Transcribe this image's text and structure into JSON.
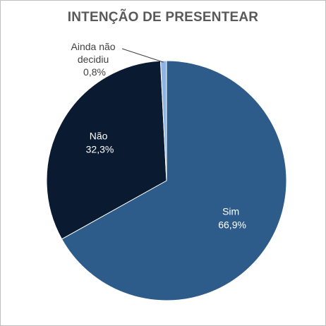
{
  "chart_data": {
    "type": "pie",
    "title": "INTENÇÃO DE PRESENTEAR",
    "slices": [
      {
        "label": "Sim",
        "value_label": "66,9%",
        "value": 66.9,
        "color": "#2e5c8a",
        "text_color": "#ffffff"
      },
      {
        "label": "Não",
        "value_label": "32,3%",
        "value": 32.3,
        "color": "#0a1a30",
        "text_color": "#ffffff"
      },
      {
        "label_lines": [
          "Ainda não",
          "decidiu"
        ],
        "value_label": "0,8%",
        "value": 0.8,
        "color": "#8fb4e3",
        "text_color": "#404040"
      }
    ],
    "start": "top",
    "direction": "clockwise",
    "legend": "none"
  }
}
